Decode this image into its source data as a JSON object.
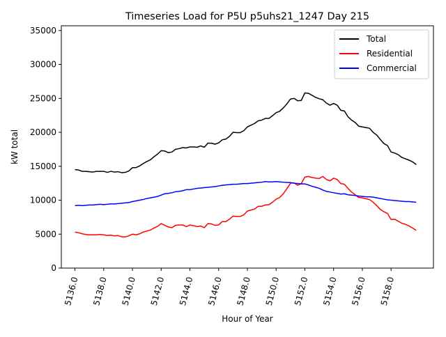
{
  "chart_data": {
    "type": "line",
    "title": "Timeseries Load for P5U p5uhs21_1247  Day 215",
    "xlabel": "Hour of Year",
    "ylabel": "kW total",
    "xlim": [
      5135.05,
      5160.95
    ],
    "ylim": [
      0,
      35700
    ],
    "x_ticks": [
      5136,
      5138,
      5140,
      5142,
      5144,
      5146,
      5148,
      5150,
      5152,
      5154,
      5156,
      5158
    ],
    "x_tick_labels": [
      "5136.0",
      "5138.0",
      "5140.0",
      "5142.0",
      "5144.0",
      "5146.0",
      "5148.0",
      "5150.0",
      "5152.0",
      "5154.0",
      "5156.0",
      "5158.0"
    ],
    "y_ticks": [
      0,
      5000,
      10000,
      15000,
      20000,
      25000,
      30000,
      35000
    ],
    "y_tick_labels": [
      "0",
      "5000",
      "10000",
      "15000",
      "20000",
      "25000",
      "30000",
      "35000"
    ],
    "legend_position": "top-right",
    "x": [
      5136.0,
      5136.25,
      5136.5,
      5136.75,
      5137.0,
      5137.25,
      5137.5,
      5137.75,
      5138.0,
      5138.25,
      5138.5,
      5138.75,
      5139.0,
      5139.25,
      5139.5,
      5139.75,
      5140.0,
      5140.25,
      5140.5,
      5140.75,
      5141.0,
      5141.25,
      5141.5,
      5141.75,
      5142.0,
      5142.25,
      5142.5,
      5142.75,
      5143.0,
      5143.25,
      5143.5,
      5143.75,
      5144.0,
      5144.25,
      5144.5,
      5144.75,
      5145.0,
      5145.25,
      5145.5,
      5145.75,
      5146.0,
      5146.25,
      5146.5,
      5146.75,
      5147.0,
      5147.25,
      5147.5,
      5147.75,
      5148.0,
      5148.25,
      5148.5,
      5148.75,
      5149.0,
      5149.25,
      5149.5,
      5149.75,
      5150.0,
      5150.25,
      5150.5,
      5150.75,
      5151.0,
      5151.25,
      5151.5,
      5151.75,
      5152.0,
      5152.25,
      5152.5,
      5152.75,
      5153.0,
      5153.25,
      5153.5,
      5153.75,
      5154.0,
      5154.25,
      5154.5,
      5154.75,
      5155.0,
      5155.25,
      5155.5,
      5155.75,
      5156.0,
      5156.25,
      5156.5,
      5156.75,
      5157.0,
      5157.25,
      5157.5,
      5157.75,
      5158.0,
      5158.25,
      5158.5,
      5158.75,
      5159.0,
      5159.25,
      5159.5,
      5159.75
    ],
    "series": [
      {
        "name": "Total",
        "color": "#000000",
        "values": [
          14500,
          14450,
          14250,
          14250,
          14200,
          14150,
          14250,
          14250,
          14250,
          14100,
          14250,
          14150,
          14200,
          14050,
          14100,
          14300,
          14800,
          14800,
          15050,
          15400,
          15700,
          15950,
          16400,
          16800,
          17300,
          17250,
          17000,
          17100,
          17500,
          17600,
          17750,
          17700,
          17850,
          17850,
          17800,
          18000,
          17800,
          18400,
          18400,
          18250,
          18450,
          18900,
          19000,
          19400,
          20000,
          19950,
          19950,
          20250,
          20800,
          21050,
          21300,
          21700,
          21800,
          22050,
          22050,
          22450,
          22900,
          23100,
          23600,
          24200,
          24900,
          25000,
          24650,
          24700,
          25800,
          25750,
          25450,
          25150,
          24950,
          24800,
          24300,
          24000,
          24250,
          24000,
          23250,
          23150,
          22300,
          21800,
          21450,
          20900,
          20800,
          20700,
          20600,
          20000,
          19600,
          18950,
          18350,
          18050,
          17100,
          16950,
          16700,
          16300,
          16100,
          15900,
          15650,
          15250
        ]
      },
      {
        "name": "Residential",
        "color": "#ff0000",
        "values": [
          5300,
          5200,
          5050,
          4950,
          4900,
          4900,
          4900,
          4950,
          4900,
          4800,
          4850,
          4750,
          4800,
          4600,
          4600,
          4750,
          5000,
          4900,
          5050,
          5300,
          5450,
          5600,
          5900,
          6150,
          6550,
          6300,
          6050,
          5950,
          6300,
          6350,
          6350,
          6100,
          6350,
          6250,
          6100,
          6200,
          5950,
          6550,
          6500,
          6300,
          6350,
          6850,
          6850,
          7200,
          7650,
          7600,
          7600,
          7850,
          8400,
          8550,
          8700,
          9100,
          9100,
          9300,
          9350,
          9700,
          10150,
          10400,
          10950,
          11700,
          12500,
          12550,
          12200,
          12450,
          13400,
          13500,
          13350,
          13250,
          13200,
          13500,
          13050,
          12850,
          13250,
          13050,
          12450,
          12350,
          11750,
          11200,
          10800,
          10400,
          10350,
          10200,
          10100,
          9700,
          9200,
          8650,
          8300,
          8050,
          7150,
          7200,
          6900,
          6600,
          6450,
          6200,
          5900,
          5550
        ]
      },
      {
        "name": "Commercial",
        "color": "#0000ff",
        "values": [
          9200,
          9250,
          9200,
          9250,
          9300,
          9300,
          9350,
          9400,
          9350,
          9400,
          9450,
          9450,
          9500,
          9550,
          9600,
          9650,
          9800,
          9900,
          10000,
          10100,
          10250,
          10350,
          10450,
          10550,
          10750,
          10950,
          11000,
          11100,
          11250,
          11300,
          11400,
          11550,
          11550,
          11650,
          11750,
          11800,
          11850,
          11900,
          11950,
          12000,
          12100,
          12200,
          12250,
          12300,
          12350,
          12350,
          12400,
          12450,
          12450,
          12500,
          12550,
          12600,
          12650,
          12750,
          12700,
          12700,
          12750,
          12700,
          12650,
          12600,
          12600,
          12500,
          12450,
          12400,
          12400,
          12250,
          12050,
          11900,
          11750,
          11500,
          11300,
          11200,
          11100,
          11000,
          10900,
          10950,
          10800,
          10750,
          10700,
          10600,
          10550,
          10500,
          10500,
          10450,
          10350,
          10250,
          10150,
          10050,
          10000,
          9950,
          9900,
          9850,
          9800,
          9800,
          9750,
          9700
        ]
      }
    ]
  }
}
